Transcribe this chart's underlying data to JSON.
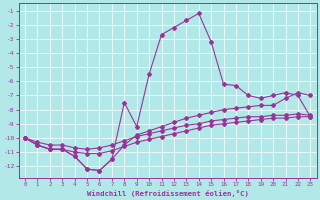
{
  "xlabel": "Windchill (Refroidissement éolien,°C)",
  "background_color": "#b3e8e8",
  "grid_color": "#ffffff",
  "line_color": "#993399",
  "xlim": [
    -0.5,
    23.5
  ],
  "ylim": [
    -12.8,
    -0.5
  ],
  "yticks": [
    -1,
    -2,
    -3,
    -4,
    -5,
    -6,
    -7,
    -8,
    -9,
    -10,
    -11,
    -12
  ],
  "xticks": [
    0,
    1,
    2,
    3,
    4,
    5,
    6,
    7,
    8,
    9,
    10,
    11,
    12,
    13,
    14,
    15,
    16,
    17,
    18,
    19,
    20,
    21,
    22,
    23
  ],
  "curve_peaked_x": [
    0,
    1,
    2,
    3,
    4,
    5,
    6,
    7,
    8,
    9,
    10,
    11,
    12,
    13,
    14,
    15,
    16,
    17,
    18,
    19,
    20,
    21,
    22,
    23
  ],
  "curve_peaked_y": [
    -10.0,
    -10.5,
    -10.8,
    -10.8,
    -11.3,
    -12.2,
    -12.3,
    -11.5,
    -7.5,
    -9.2,
    -5.5,
    -2.7,
    -2.2,
    -1.7,
    -1.2,
    -3.2,
    -6.2,
    -6.3,
    -7.0,
    -7.2,
    -7.0,
    -6.8,
    -7.0,
    -8.5
  ],
  "curve_mid_x": [
    0,
    1,
    2,
    3,
    4,
    5,
    6,
    7,
    8,
    9,
    10,
    11,
    12,
    13,
    14,
    15,
    16,
    17,
    18,
    19,
    20,
    21,
    22,
    23
  ],
  "curve_mid_y": [
    -10.0,
    -10.5,
    -10.8,
    -10.8,
    -11.3,
    -12.2,
    -12.3,
    -11.5,
    -10.5,
    -9.8,
    -9.5,
    -9.2,
    -8.9,
    -8.6,
    -8.4,
    -8.2,
    -8.0,
    -7.9,
    -7.8,
    -7.7,
    -7.7,
    -7.2,
    -6.8,
    -7.0
  ],
  "curve_low1_x": [
    0,
    1,
    2,
    3,
    4,
    5,
    6,
    7,
    8,
    9,
    10,
    11,
    12,
    13,
    14,
    15,
    16,
    17,
    18,
    19,
    20,
    21,
    22,
    23
  ],
  "curve_low1_y": [
    -10.0,
    -10.5,
    -10.8,
    -10.8,
    -11.0,
    -11.1,
    -11.1,
    -10.9,
    -10.6,
    -10.3,
    -10.1,
    -9.9,
    -9.7,
    -9.5,
    -9.3,
    -9.1,
    -9.0,
    -8.9,
    -8.8,
    -8.7,
    -8.6,
    -8.6,
    -8.5,
    -8.5
  ],
  "curve_low2_x": [
    0,
    1,
    2,
    3,
    4,
    5,
    6,
    7,
    8,
    9,
    10,
    11,
    12,
    13,
    14,
    15,
    16,
    17,
    18,
    19,
    20,
    21,
    22,
    23
  ],
  "curve_low2_y": [
    -10.0,
    -10.3,
    -10.5,
    -10.5,
    -10.7,
    -10.8,
    -10.7,
    -10.5,
    -10.2,
    -9.9,
    -9.7,
    -9.5,
    -9.3,
    -9.1,
    -9.0,
    -8.8,
    -8.7,
    -8.6,
    -8.5,
    -8.5,
    -8.4,
    -8.4,
    -8.3,
    -8.4
  ]
}
